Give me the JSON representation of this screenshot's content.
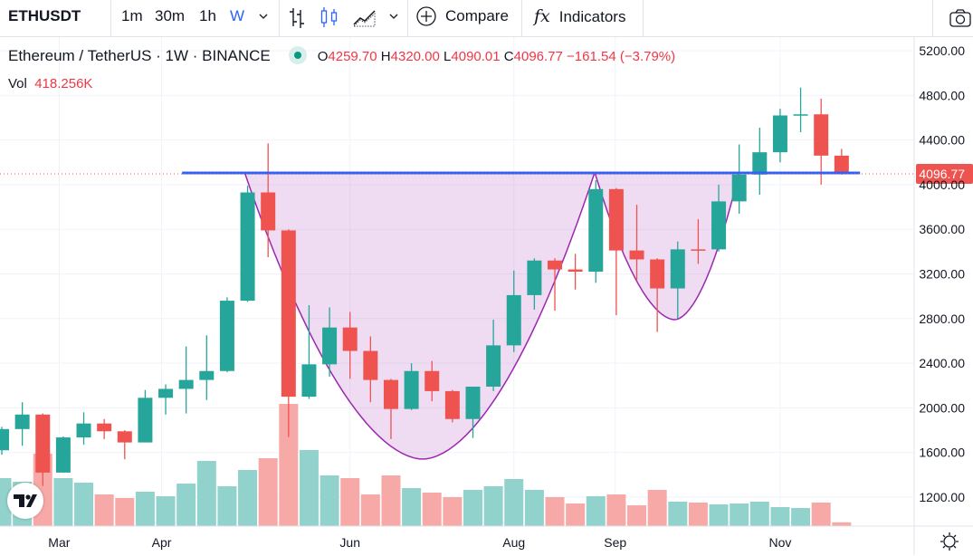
{
  "toolbar": {
    "symbol": "ETHUSDT",
    "intervals": [
      "1m",
      "30m",
      "1h",
      "W"
    ],
    "active_interval": "W",
    "compare_label": "Compare",
    "indicators_label": "Indicators",
    "indicators_icon_text": "fx"
  },
  "legend": {
    "title": "Ethereum / TetherUS · 1W · BINANCE",
    "open_label": "O",
    "open": "4259.70",
    "high_label": "H",
    "high": "4320.00",
    "low_label": "L",
    "low": "4090.01",
    "close_label": "C",
    "close": "4096.77",
    "change": "−161.54 (−3.79%)",
    "vol_label": "Vol",
    "vol": "418.256K"
  },
  "colors": {
    "up": "#26a69a",
    "down": "#ef5350",
    "vol_up": "#92d2cc",
    "vol_down": "#f7a9a7",
    "accent": "#2962ff",
    "cup": "#9c27b0"
  },
  "chart_data": {
    "type": "candlestick",
    "title": "Ethereum / TetherUS · 1W · BINANCE",
    "ylim": [
      1200,
      5200
    ],
    "y_ticks": [
      "5200.00",
      "4800.00",
      "4400.00",
      "4000.00",
      "3600.00",
      "3200.00",
      "2800.00",
      "2400.00",
      "2000.00",
      "1600.00",
      "1200.00"
    ],
    "y_tick_values": [
      5200,
      4800,
      4400,
      4000,
      3600,
      3200,
      2800,
      2400,
      2000,
      1600,
      1200
    ],
    "x_ticks": [
      {
        "label": "Mar",
        "index": 2.8
      },
      {
        "label": "Apr",
        "index": 7.8
      },
      {
        "label": "Jun",
        "index": 17
      },
      {
        "label": "Aug",
        "index": 25
      },
      {
        "label": "Sep",
        "index": 29.95
      },
      {
        "label": "Nov",
        "index": 38
      }
    ],
    "last_price": "4096.77",
    "last_price_value": 4096.77,
    "ohlc": [
      [
        1620,
        1830,
        1580,
        1810
      ],
      [
        1810,
        2050,
        1660,
        1940
      ],
      [
        1940,
        1950,
        1300,
        1420
      ],
      [
        1420,
        1745,
        1420,
        1735
      ],
      [
        1735,
        1960,
        1670,
        1860
      ],
      [
        1860,
        1900,
        1720,
        1790
      ],
      [
        1790,
        1800,
        1540,
        1690
      ],
      [
        1690,
        2160,
        1690,
        2090
      ],
      [
        2090,
        2210,
        1940,
        2170
      ],
      [
        2170,
        2550,
        1950,
        2250
      ],
      [
        2250,
        2650,
        2070,
        2330
      ],
      [
        2330,
        2990,
        2320,
        2960
      ],
      [
        2960,
        3990,
        2950,
        3930
      ],
      [
        3930,
        4370,
        3350,
        3590
      ],
      [
        3590,
        3600,
        1740,
        2100
      ],
      [
        2100,
        2920,
        2080,
        2390
      ],
      [
        2390,
        2900,
        2280,
        2720
      ],
      [
        2720,
        2860,
        2260,
        2510
      ],
      [
        2510,
        2640,
        2050,
        2250
      ],
      [
        2250,
        2260,
        1720,
        1990
      ],
      [
        1990,
        2400,
        1980,
        2330
      ],
      [
        2330,
        2420,
        2060,
        2150
      ],
      [
        2150,
        2160,
        1870,
        1900
      ],
      [
        1900,
        2190,
        1730,
        2190
      ],
      [
        2190,
        2790,
        2150,
        2560
      ],
      [
        2560,
        3230,
        2500,
        3010
      ],
      [
        3010,
        3340,
        2880,
        3320
      ],
      [
        3320,
        3340,
        2870,
        3240
      ],
      [
        3240,
        3380,
        3060,
        3220
      ],
      [
        3220,
        4040,
        3120,
        3960
      ],
      [
        3960,
        3970,
        2830,
        3410
      ],
      [
        3410,
        3820,
        3140,
        3330
      ],
      [
        3330,
        3340,
        2680,
        3070
      ],
      [
        3070,
        3490,
        2800,
        3420
      ],
      [
        3420,
        3690,
        3290,
        3415
      ],
      [
        3420,
        4000,
        3400,
        3850
      ],
      [
        3850,
        4360,
        3740,
        4090
      ],
      [
        4090,
        4510,
        3910,
        4290
      ],
      [
        4290,
        4680,
        4200,
        4620
      ],
      [
        4620,
        4870,
        4470,
        4630
      ],
      [
        4630,
        4770,
        4000,
        4260
      ],
      [
        4259.7,
        4320.0,
        4090.01,
        4096.77
      ]
    ],
    "volume_k": [
      5300,
      4900,
      8000,
      5300,
      4800,
      3500,
      3100,
      3800,
      3300,
      4700,
      7200,
      4400,
      6200,
      7500,
      13500,
      8400,
      5600,
      5300,
      3500,
      5600,
      4200,
      3700,
      3200,
      4000,
      4400,
      5200,
      4000,
      3200,
      2500,
      3300,
      3500,
      2300,
      4000,
      2700,
      2600,
      2400,
      2500,
      2700,
      2100,
      2000,
      2600,
      418.256
    ],
    "annotations": {
      "resistance_line": {
        "price": 4105,
        "from_index": 8.8,
        "to_index": 41.9
      },
      "cup": {
        "left_index": 11.85,
        "bottom_index": 20.55,
        "right_index": 28.95,
        "rim_price": 4110,
        "bottom_price": 1540
      },
      "handle": {
        "left_index": 28.95,
        "bottom_index": 32.85,
        "right_index": 36,
        "rim_price": 4110,
        "bottom_price": 2790
      }
    }
  }
}
